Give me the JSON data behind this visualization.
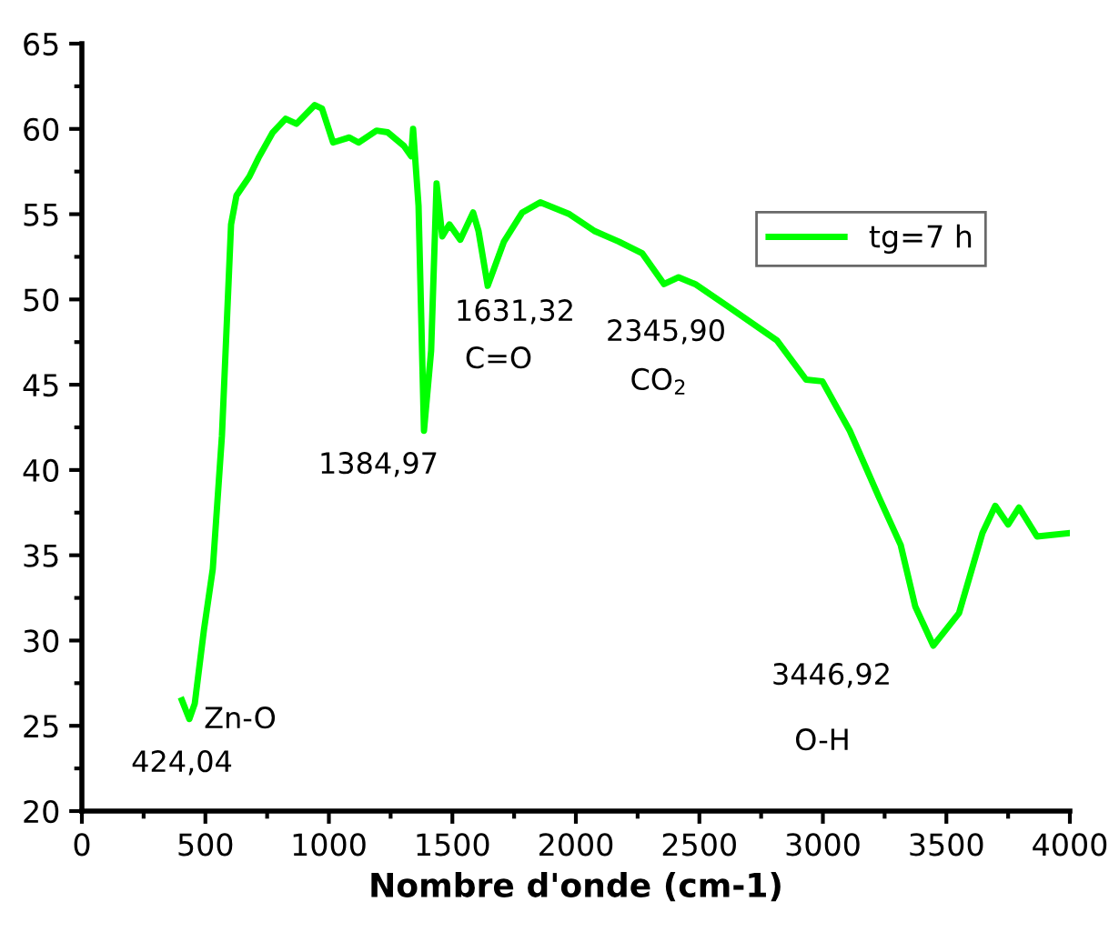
{
  "chart_data": {
    "type": "line",
    "xlabel": "Nombre d'onde (cm-1)",
    "xlim": [
      0,
      4000
    ],
    "xticks": [
      0,
      500,
      1000,
      1500,
      2000,
      2500,
      3000,
      3500,
      4000
    ],
    "ylim": [
      20,
      65
    ],
    "yticks": [
      20,
      25,
      30,
      35,
      40,
      45,
      50,
      55,
      60,
      65
    ],
    "legend": "top right",
    "grid": false,
    "marker": "none",
    "line_style": "solid",
    "series": [
      {
        "name": "tg=7 h",
        "color": "#00ff00",
        "x": [
          405,
          435,
          457,
          494,
          530,
          567,
          604,
          626,
          678,
          715,
          773,
          825,
          869,
          943,
          972,
          1017,
          1083,
          1120,
          1193,
          1238,
          1304,
          1333,
          1341,
          1363,
          1385,
          1414,
          1436,
          1459,
          1488,
          1532,
          1584,
          1606,
          1643,
          1709,
          1783,
          1856,
          1974,
          2077,
          2173,
          2269,
          2357,
          2416,
          2483,
          2615,
          2814,
          2932,
          2998,
          3109,
          3227,
          3315,
          3374,
          3447,
          3551,
          3646,
          3698,
          3750,
          3794,
          3867,
          4000
        ],
        "values": [
          26.5,
          25.4,
          26.3,
          30.6,
          34.2,
          42.0,
          54.4,
          56.1,
          57.2,
          58.3,
          59.8,
          60.6,
          60.3,
          61.4,
          61.2,
          59.2,
          59.5,
          59.2,
          59.9,
          59.8,
          59.0,
          58.4,
          60.0,
          55.5,
          42.3,
          47.0,
          56.8,
          53.7,
          54.4,
          53.5,
          55.1,
          54.0,
          50.8,
          53.4,
          55.1,
          55.7,
          55.0,
          54.0,
          53.4,
          52.7,
          50.9,
          51.3,
          50.9,
          49.6,
          47.6,
          45.3,
          45.2,
          42.3,
          38.4,
          35.6,
          32.0,
          29.7,
          31.6,
          36.3,
          37.9,
          36.8,
          37.8,
          36.1,
          36.3
        ]
      }
    ],
    "annotations": [
      "424,04",
      "Zn-O",
      "1384,97",
      "1631,32",
      "C=O",
      "2345,90",
      "CO$_{2}$",
      "3446,92",
      "O-H"
    ]
  }
}
